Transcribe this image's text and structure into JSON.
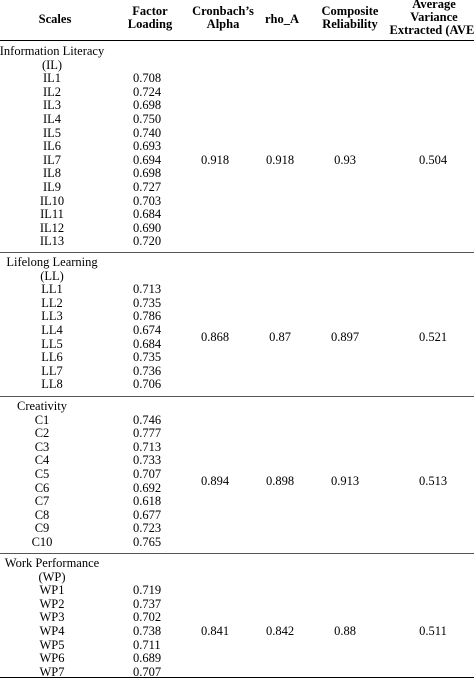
{
  "table": {
    "headers": {
      "scales": "Scales",
      "factor_loading": [
        "Factor",
        "Loading"
      ],
      "cronbach": [
        "Cronbach’s",
        "Alpha"
      ],
      "rho_a": "rho_A",
      "composite": [
        "Composite",
        "Reliability"
      ],
      "ave": [
        "Average",
        "Variance",
        "Extracted (AVE)"
      ]
    },
    "groups": [
      {
        "label": [
          "Information Literacy",
          "(IL)"
        ],
        "items": [
          {
            "name": "IL1",
            "loading": "0.708"
          },
          {
            "name": "IL2",
            "loading": "0.724"
          },
          {
            "name": "IL3",
            "loading": "0.698"
          },
          {
            "name": "IL4",
            "loading": "0.750"
          },
          {
            "name": "IL5",
            "loading": "0.740"
          },
          {
            "name": "IL6",
            "loading": "0.693"
          },
          {
            "name": "IL7",
            "loading": "0.694"
          },
          {
            "name": "IL8",
            "loading": "0.698"
          },
          {
            "name": "IL9",
            "loading": "0.727"
          },
          {
            "name": "IL10",
            "loading": "0.703"
          },
          {
            "name": "IL11",
            "loading": "0.684"
          },
          {
            "name": "IL12",
            "loading": "0.690"
          },
          {
            "name": "IL13",
            "loading": "0.720"
          }
        ],
        "alpha": "0.918",
        "rho_a": "0.918",
        "cr": "0.93",
        "ave": "0.504"
      },
      {
        "label": [
          "Lifelong Learning",
          "(LL)"
        ],
        "items": [
          {
            "name": "LL1",
            "loading": "0.713"
          },
          {
            "name": "LL2",
            "loading": "0.735"
          },
          {
            "name": "LL3",
            "loading": "0.786"
          },
          {
            "name": "LL4",
            "loading": "0.674"
          },
          {
            "name": "LL5",
            "loading": "0.684"
          },
          {
            "name": "LL6",
            "loading": "0.735"
          },
          {
            "name": "LL7",
            "loading": "0.736"
          },
          {
            "name": "LL8",
            "loading": "0.706"
          }
        ],
        "alpha": "0.868",
        "rho_a": "0.87",
        "cr": "0.897",
        "ave": "0.521"
      },
      {
        "label": [
          "Creativity"
        ],
        "items": [
          {
            "name": "C1",
            "loading": "0.746"
          },
          {
            "name": "C2",
            "loading": "0.777"
          },
          {
            "name": "C3",
            "loading": "0.713"
          },
          {
            "name": "C4",
            "loading": "0.733"
          },
          {
            "name": "C5",
            "loading": "0.707"
          },
          {
            "name": "C6",
            "loading": "0.692"
          },
          {
            "name": "C7",
            "loading": "0.618"
          },
          {
            "name": "C8",
            "loading": "0.677"
          },
          {
            "name": "C9",
            "loading": "0.723"
          },
          {
            "name": "C10",
            "loading": "0.765"
          }
        ],
        "alpha": "0.894",
        "rho_a": "0.898",
        "cr": "0.913",
        "ave": "0.513"
      },
      {
        "label": [
          "Work Performance",
          "(WP)"
        ],
        "items": [
          {
            "name": "WP1",
            "loading": "0.719"
          },
          {
            "name": "WP2",
            "loading": "0.737"
          },
          {
            "name": "WP3",
            "loading": "0.702"
          },
          {
            "name": "WP4",
            "loading": "0.738"
          },
          {
            "name": "WP5",
            "loading": "0.711"
          },
          {
            "name": "WP6",
            "loading": "0.689"
          },
          {
            "name": "WP7",
            "loading": "0.707"
          }
        ],
        "alpha": "0.841",
        "rho_a": "0.842",
        "cr": "0.88",
        "ave": "0.511"
      }
    ]
  }
}
